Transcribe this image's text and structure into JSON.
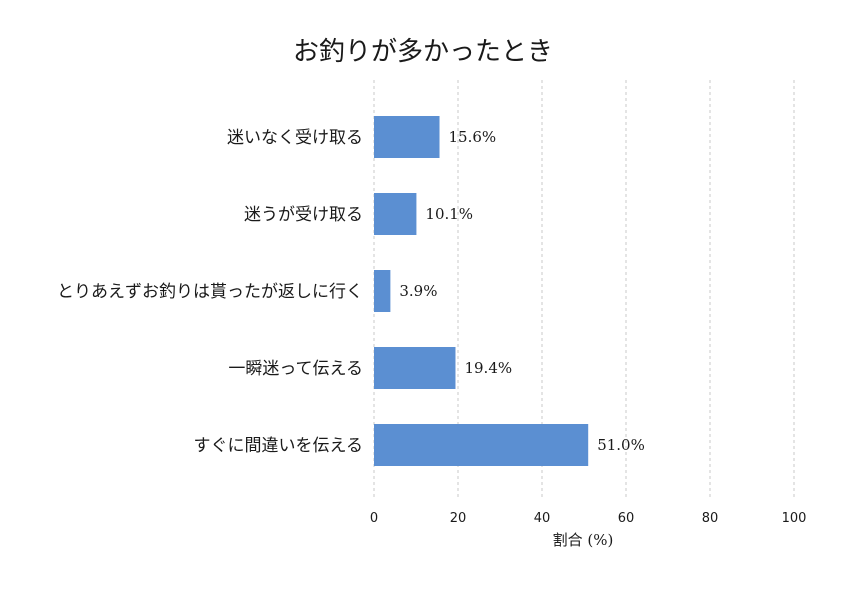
{
  "chart_data": {
    "type": "bar",
    "orientation": "horizontal",
    "title": "お釣りが多かったとき",
    "xlabel": "割合 (%)",
    "ylabel": "",
    "xlim": [
      0,
      100
    ],
    "xticks": [
      0,
      20,
      40,
      60,
      80,
      100
    ],
    "grid": "vertical dashed",
    "categories": [
      "迷いなく受け取る",
      "迷うが受け取る",
      "とりあえずお釣りは貰ったが返しに行く",
      "一瞬迷って伝える",
      "すぐに間違いを伝える"
    ],
    "values": [
      15.6,
      10.1,
      3.9,
      19.4,
      51.0
    ],
    "value_labels": [
      "15.6%",
      "10.1%",
      "3.9%",
      "19.4%",
      "51.0%"
    ],
    "bar_color": "#5b8fd2"
  }
}
